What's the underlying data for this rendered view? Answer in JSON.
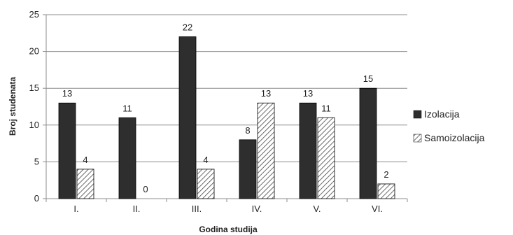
{
  "chart_data": {
    "type": "bar",
    "title": "",
    "xlabel": "Godina studija",
    "ylabel": "Broj studenata",
    "ylim": [
      0,
      25
    ],
    "yticks": [
      0,
      5,
      10,
      15,
      20,
      25
    ],
    "grid": true,
    "legend_position": "right",
    "categories": [
      "I.",
      "II.",
      "III.",
      "IV.",
      "V.",
      "VI."
    ],
    "series": [
      {
        "name": "Izolacija",
        "values": [
          13,
          11,
          22,
          8,
          13,
          15
        ],
        "color": "#2e2e2e",
        "pattern": "solid"
      },
      {
        "name": "Samoizolacija",
        "values": [
          4,
          0,
          4,
          13,
          11,
          2
        ],
        "color": "#444444",
        "pattern": "diagonal-hatch"
      }
    ]
  }
}
